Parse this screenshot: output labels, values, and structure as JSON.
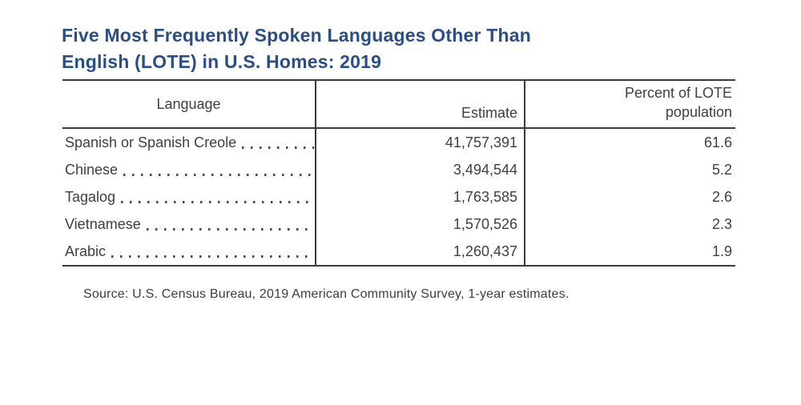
{
  "colors": {
    "title_blue": "#2a4e87",
    "text": "#3f3f3f",
    "rule": "#3a3a3a"
  },
  "header": {
    "title_line1": "Five Most Frequently Spoken Languages Other Than",
    "title_line2": "English (LOTE) in U.S. Homes: 2019"
  },
  "table": {
    "columns": [
      "Language",
      "Estimate",
      "Percent of LOTE population"
    ],
    "rows": [
      {
        "language": "Spanish or Spanish Creole",
        "estimate": "41,757,391",
        "percent": "61.6"
      },
      {
        "language": "Chinese",
        "estimate": "3,494,544",
        "percent": "5.2"
      },
      {
        "language": "Tagalog",
        "estimate": "1,763,585",
        "percent": "2.6"
      },
      {
        "language": "Vietnamese",
        "estimate": "1,570,526",
        "percent": "2.3"
      },
      {
        "language": "Arabic",
        "estimate": "1,260,437",
        "percent": "1.9"
      }
    ]
  },
  "footer": {
    "source": "Source: U.S. Census Bureau, 2019 American Community Survey, 1-year estimates."
  },
  "chart_data": {
    "type": "table",
    "title": "Five Most Frequently Spoken Languages Other Than English (LOTE) in U.S. Homes: 2019",
    "columns": [
      "Language",
      "Estimate",
      "Percent of LOTE population"
    ],
    "rows": [
      [
        "Spanish or Spanish Creole",
        41757391,
        61.6
      ],
      [
        "Chinese",
        3494544,
        5.2
      ],
      [
        "Tagalog",
        1763585,
        2.6
      ],
      [
        "Vietnamese",
        1570526,
        2.3
      ],
      [
        "Arabic",
        1260437,
        1.9
      ]
    ],
    "source": "Source: U.S. Census Bureau, 2019 American Community Survey, 1-year estimates."
  }
}
